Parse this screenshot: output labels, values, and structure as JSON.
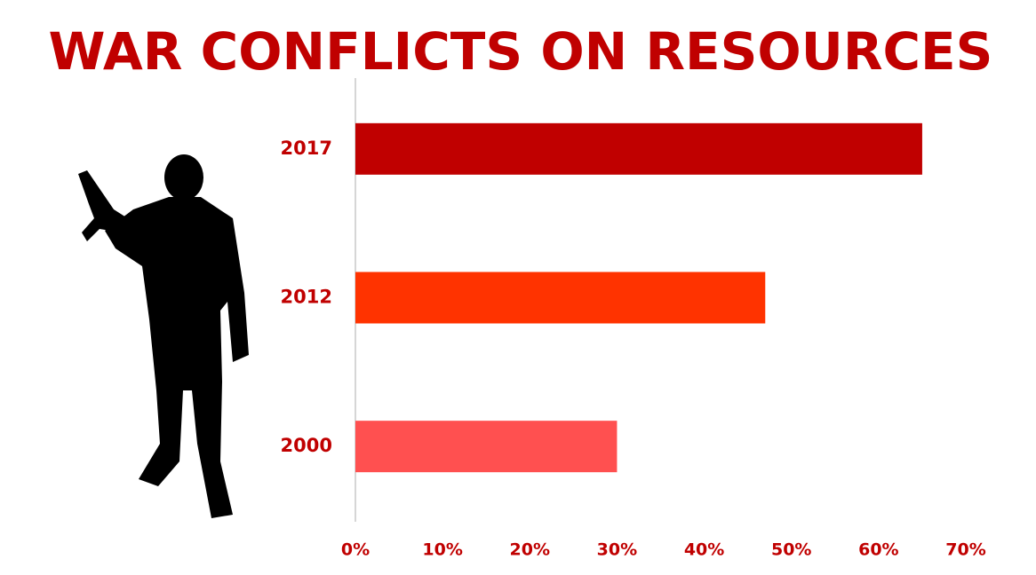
{
  "chart_data": {
    "type": "hbar",
    "title": "WAR CONFLICTS ON RESOURCES",
    "categories": [
      "2017",
      "2012",
      "2000"
    ],
    "values": [
      65,
      47,
      30
    ],
    "colors": [
      "#c00000",
      "#ff3300",
      "#ff5050"
    ],
    "xlim": [
      0,
      70
    ],
    "xticks": [
      {
        "value": 0,
        "label": "0%"
      },
      {
        "value": 10,
        "label": "10%"
      },
      {
        "value": 20,
        "label": "20%"
      },
      {
        "value": 30,
        "label": "30%"
      },
      {
        "value": 40,
        "label": "40%"
      },
      {
        "value": 50,
        "label": "50%"
      },
      {
        "value": 60,
        "label": "60%"
      },
      {
        "value": 70,
        "label": "70%"
      }
    ],
    "grid": false
  }
}
